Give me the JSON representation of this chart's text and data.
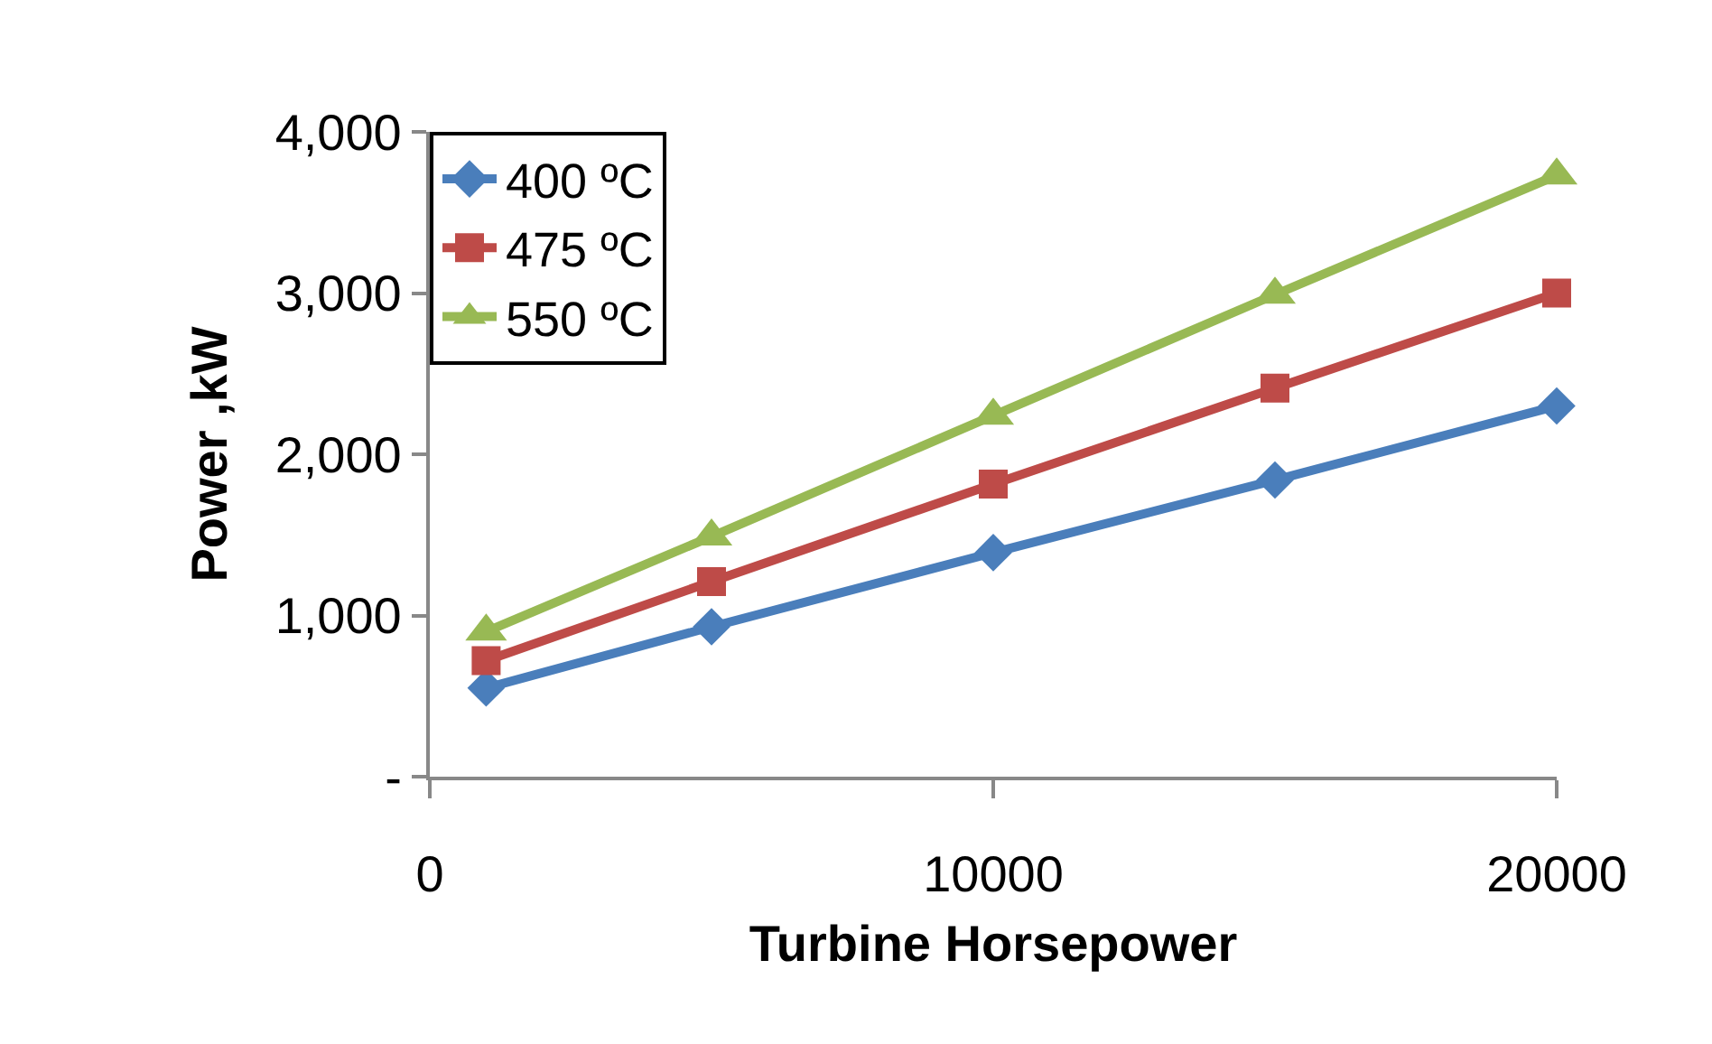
{
  "chart_data": {
    "type": "line",
    "xlabel": "Turbine Horsepower",
    "ylabel": "Power ,kW",
    "x": [
      1000,
      5000,
      10000,
      15000,
      20000
    ],
    "series": [
      {
        "name": "400 ºC",
        "color": "#4a7ebb",
        "values": [
          550,
          930,
          1390,
          1840,
          2300
        ],
        "marker": "diamond"
      },
      {
        "name": "475 ºC",
        "color": "#be4b48",
        "values": [
          720,
          1210,
          1815,
          2410,
          3000
        ],
        "marker": "square"
      },
      {
        "name": "550 ºC",
        "color": "#98b954",
        "values": [
          900,
          1490,
          2240,
          2990,
          3730
        ],
        "marker": "triangle"
      }
    ],
    "xlim": [
      0,
      20000
    ],
    "xticks": [
      0,
      10000,
      20000
    ],
    "ylim": [
      0,
      4000
    ],
    "yticks": [
      {
        "value": 0,
        "label": "-"
      },
      {
        "value": 1000,
        "label": "1,000"
      },
      {
        "value": 2000,
        "label": "2,000"
      },
      {
        "value": 3000,
        "label": "3,000"
      },
      {
        "value": 4000,
        "label": "4,000"
      }
    ],
    "grid": false,
    "legend": "top left",
    "line_style": "solid"
  }
}
